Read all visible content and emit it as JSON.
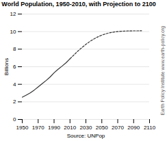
{
  "chart_data": {
    "type": "line",
    "title": "World Population, 1950-2010, with Projection to 2100",
    "xlabel": "Source: UNPop",
    "ylabel": "Billions",
    "annotations": [
      "Earth Policy Institute  www.earth-policy.org"
    ],
    "series": [
      {
        "x": [
          1950,
          1955,
          1960,
          1965,
          1970,
          1975,
          1980,
          1985,
          1990,
          1995,
          2000,
          2005,
          2010
        ],
        "values": [
          2.53,
          2.77,
          3.02,
          3.34,
          3.7,
          4.07,
          4.43,
          4.83,
          5.31,
          5.71,
          6.07,
          6.45,
          6.91
        ],
        "color": "#333333",
        "line_style": "solid"
      },
      {
        "x": [
          2010,
          2015,
          2020,
          2025,
          2030,
          2035,
          2040,
          2045,
          2050,
          2055,
          2060,
          2065,
          2070,
          2075,
          2080,
          2085,
          2090,
          2095,
          2100
        ],
        "values": [
          6.91,
          7.35,
          7.79,
          8.18,
          8.55,
          8.88,
          9.16,
          9.4,
          9.6,
          9.75,
          9.87,
          9.95,
          10.0,
          10.04,
          10.07,
          10.08,
          10.09,
          10.09,
          10.1
        ],
        "color": "#333333",
        "line_style": "dashed"
      }
    ],
    "xlim": [
      1950,
      2110
    ],
    "ylim": [
      0,
      12
    ],
    "xticks": [
      1950,
      1970,
      1990,
      2010,
      2030,
      2050,
      2070,
      2090,
      2110
    ],
    "yticks": [
      0,
      2,
      4,
      6,
      8,
      10,
      12
    ],
    "grid": "y"
  }
}
